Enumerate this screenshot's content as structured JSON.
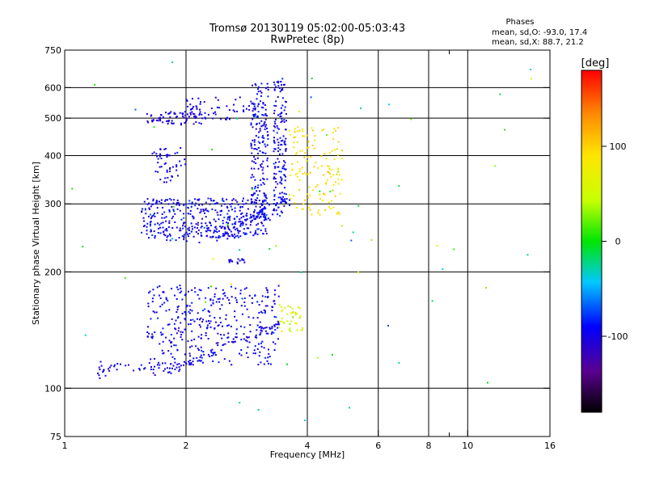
{
  "header": {
    "title": "Tromsø 20130119 05:02:00-05:03:43",
    "subtitle": "RwPretec (8p)",
    "stats_title": "Phases",
    "stats_o": "mean, sd,O: -93.0, 17.4",
    "stats_x": "mean, sd,X:  88.7, 21.2"
  },
  "colorbar": {
    "unit_label": "[deg]",
    "range": [
      -180,
      180
    ],
    "tick_values": [
      100,
      0,
      -100
    ],
    "tick_labels": [
      "100",
      "0",
      "-100"
    ]
  },
  "chart_data": {
    "type": "scatter",
    "xlabel": "Frequency [MHz]",
    "ylabel": "Stationary phase Virtual Height [km]",
    "x_scale": "log",
    "y_scale": "log",
    "xlim": [
      1,
      16
    ],
    "ylim": [
      75,
      750
    ],
    "grid": true,
    "x_ticks": [
      1,
      2,
      4,
      6,
      8,
      10,
      16
    ],
    "x_tick_labels": [
      "1",
      "2",
      "4",
      "6",
      "8",
      "10",
      "16"
    ],
    "x_minor_ticks": [
      9
    ],
    "y_ticks": [
      75,
      100,
      200,
      300,
      400,
      500,
      600,
      750
    ],
    "y_tick_labels": [
      "75",
      "100",
      "200",
      "300",
      "400",
      "500",
      "600",
      "750"
    ],
    "x_grid": [
      2,
      4,
      6,
      8,
      10
    ],
    "y_grid": [
      100,
      200,
      300,
      400,
      500,
      600
    ],
    "series": [
      {
        "type": "curve",
        "f": [
          1.7,
          2.2,
          2.7,
          3.0,
          3.3,
          3.6
        ],
        "h": [
          245,
          250,
          265,
          280,
          290,
          300
        ],
        "n": 120,
        "spread": 0.05,
        "phase": [
          -95,
          15
        ]
      },
      {
        "type": "cloud",
        "f": [
          1.55,
          3.2
        ],
        "h": [
          245,
          310
        ],
        "n": 380,
        "phase": [
          -95,
          22
        ]
      },
      {
        "type": "cloud",
        "f": [
          2.9,
          3.2
        ],
        "h": [
          300,
          620
        ],
        "n": 160,
        "phase": [
          -95,
          18
        ]
      },
      {
        "type": "cloud",
        "f": [
          3.3,
          3.55
        ],
        "h": [
          290,
          640
        ],
        "n": 150,
        "phase": [
          -95,
          18
        ]
      },
      {
        "type": "cloud",
        "f": [
          3.6,
          4.9
        ],
        "h": [
          280,
          480
        ],
        "n": 140,
        "phase": [
          90,
          25
        ]
      },
      {
        "type": "cloud",
        "f": [
          1.6,
          2.2
        ],
        "h": [
          480,
          520
        ],
        "n": 70,
        "phase": [
          -100,
          15
        ]
      },
      {
        "type": "cloud",
        "f": [
          2.0,
          3.0
        ],
        "h": [
          495,
          570
        ],
        "n": 60,
        "phase": [
          -100,
          15
        ]
      },
      {
        "type": "cloud",
        "f": [
          1.65,
          2.0
        ],
        "h": [
          340,
          420
        ],
        "n": 50,
        "phase": [
          -100,
          15
        ]
      },
      {
        "type": "cloud",
        "f": [
          2.5,
          2.8
        ],
        "h": [
          210,
          216
        ],
        "n": 18,
        "phase": [
          -100,
          15
        ]
      },
      {
        "type": "curve",
        "f": [
          1.2,
          1.4,
          1.7,
          2.0,
          2.5,
          3.0,
          3.4
        ],
        "h": [
          112,
          113,
          112,
          116,
          130,
          140,
          145
        ],
        "n": 120,
        "spread": 0.04,
        "phase": [
          -100,
          15
        ]
      },
      {
        "type": "cloud",
        "f": [
          1.6,
          3.4
        ],
        "h": [
          115,
          185
        ],
        "n": 360,
        "phase": [
          -95,
          20
        ]
      },
      {
        "type": "cloud",
        "f": [
          3.4,
          3.9
        ],
        "h": [
          140,
          165
        ],
        "n": 40,
        "phase": [
          60,
          40
        ]
      },
      {
        "type": "cloud",
        "f": [
          1.04,
          16
        ],
        "h": [
          80,
          700
        ],
        "n": 60,
        "phase": [
          0,
          90
        ]
      }
    ]
  }
}
